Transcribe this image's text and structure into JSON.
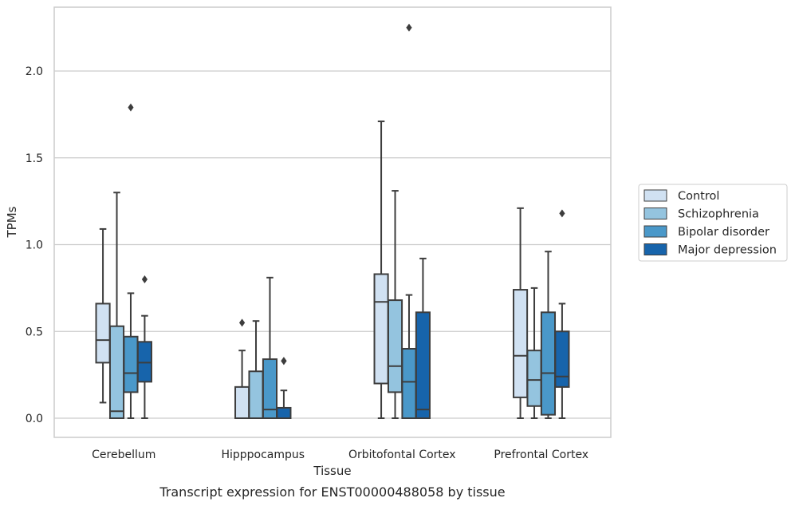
{
  "chart_data": {
    "type": "box",
    "caption": "Transcript expression for ENST00000488058 by tissue",
    "xlabel": "Tissue",
    "ylabel": "TPMs",
    "ylim": [
      -0.11,
      2.37
    ],
    "yticks": [
      0.0,
      0.5,
      1.0,
      1.5,
      2.0
    ],
    "ytick_labels": [
      "0.0",
      "0.5",
      "1.0",
      "1.5",
      "2.0"
    ],
    "grid": "horizontal",
    "legend_position": "right",
    "categories": [
      "Cerebellum",
      "Hipppocampus",
      "Orbitofontal Cortex",
      "Prefrontal Cortex"
    ],
    "series": [
      {
        "name": "Control",
        "color": "#d0e1f2",
        "boxes": [
          {
            "whislo": 0.09,
            "q1": 0.32,
            "med": 0.45,
            "q3": 0.66,
            "whishi": 1.09,
            "fliers": []
          },
          {
            "whislo": 0.0,
            "q1": 0.0,
            "med": 0.0,
            "q3": 0.18,
            "whishi": 0.39,
            "fliers": [
              0.55
            ]
          },
          {
            "whislo": 0.0,
            "q1": 0.2,
            "med": 0.67,
            "q3": 0.83,
            "whishi": 1.71,
            "fliers": []
          },
          {
            "whislo": 0.0,
            "q1": 0.12,
            "med": 0.36,
            "q3": 0.74,
            "whishi": 1.21,
            "fliers": []
          }
        ]
      },
      {
        "name": "Schizophrenia",
        "color": "#94c4df",
        "boxes": [
          {
            "whislo": 0.0,
            "q1": 0.0,
            "med": 0.04,
            "q3": 0.53,
            "whishi": 1.3,
            "fliers": []
          },
          {
            "whislo": 0.0,
            "q1": 0.0,
            "med": 0.0,
            "q3": 0.27,
            "whishi": 0.56,
            "fliers": []
          },
          {
            "whislo": 0.0,
            "q1": 0.15,
            "med": 0.3,
            "q3": 0.68,
            "whishi": 1.31,
            "fliers": []
          },
          {
            "whislo": 0.0,
            "q1": 0.07,
            "med": 0.22,
            "q3": 0.39,
            "whishi": 0.75,
            "fliers": []
          }
        ]
      },
      {
        "name": "Bipolar disorder",
        "color": "#4a98c9",
        "boxes": [
          {
            "whislo": 0.0,
            "q1": 0.15,
            "med": 0.26,
            "q3": 0.47,
            "whishi": 0.72,
            "fliers": [
              1.79
            ]
          },
          {
            "whislo": 0.0,
            "q1": 0.0,
            "med": 0.05,
            "q3": 0.34,
            "whishi": 0.81,
            "fliers": []
          },
          {
            "whislo": 0.0,
            "q1": 0.0,
            "med": 0.21,
            "q3": 0.4,
            "whishi": 0.71,
            "fliers": [
              2.25
            ]
          },
          {
            "whislo": 0.0,
            "q1": 0.02,
            "med": 0.26,
            "q3": 0.61,
            "whishi": 0.96,
            "fliers": []
          }
        ]
      },
      {
        "name": "Major depression",
        "color": "#1764ab",
        "boxes": [
          {
            "whislo": 0.0,
            "q1": 0.21,
            "med": 0.32,
            "q3": 0.44,
            "whishi": 0.59,
            "fliers": [
              0.8
            ]
          },
          {
            "whislo": 0.0,
            "q1": 0.0,
            "med": 0.0,
            "q3": 0.06,
            "whishi": 0.16,
            "fliers": [
              0.33,
              0.33
            ]
          },
          {
            "whislo": 0.0,
            "q1": 0.0,
            "med": 0.05,
            "q3": 0.61,
            "whishi": 0.92,
            "fliers": []
          },
          {
            "whislo": 0.0,
            "q1": 0.18,
            "med": 0.24,
            "q3": 0.5,
            "whishi": 0.66,
            "fliers": [
              1.18
            ]
          }
        ]
      }
    ]
  }
}
